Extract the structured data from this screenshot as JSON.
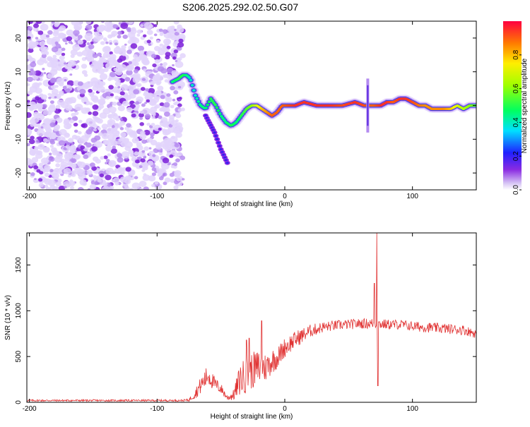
{
  "title": "S206.2025.292.02.50.G07",
  "chart_data": [
    {
      "type": "heatmap",
      "xlabel": "Height of straight line (km)",
      "ylabel": "Frequency (Hz)",
      "xlim": [
        -202,
        150
      ],
      "ylim": [
        -25,
        25
      ],
      "xticks": [
        -200,
        -100,
        0,
        100
      ],
      "yticks": [
        -20,
        -10,
        0,
        10,
        20
      ],
      "noise_region_x": [
        -202,
        -85
      ],
      "ridge": {
        "x": [
          -88,
          -83,
          -80,
          -77,
          -74,
          -70,
          -66,
          -62,
          -58,
          -54,
          -50,
          -46,
          -42,
          -38,
          -34,
          -30,
          -26,
          -22,
          -18,
          -14,
          -10,
          -6,
          -2,
          2,
          8,
          15,
          25,
          35,
          45,
          55,
          62,
          66,
          70,
          75,
          80,
          85,
          90,
          95,
          100,
          105,
          110,
          115,
          120,
          125,
          130,
          135,
          140,
          145,
          150
        ],
        "y": [
          7,
          8,
          9,
          9,
          8,
          3,
          0,
          -1,
          2,
          0,
          -3,
          -5,
          -6,
          -5,
          -3,
          -1,
          0,
          0,
          -1,
          -2,
          -3,
          -2,
          0,
          0,
          0,
          1,
          0,
          0,
          0,
          1,
          0,
          0,
          0,
          0,
          1,
          1,
          2,
          2,
          1,
          0,
          0,
          -1,
          -1,
          -1,
          -1,
          0,
          -1,
          0,
          0
        ],
        "amplitude": [
          0.45,
          0.5,
          0.5,
          0.45,
          0.4,
          0.4,
          0.45,
          0.45,
          0.5,
          0.5,
          0.45,
          0.45,
          0.5,
          0.45,
          0.5,
          0.55,
          0.6,
          0.7,
          0.8,
          0.85,
          0.9,
          0.9,
          0.9,
          0.92,
          0.95,
          0.95,
          0.95,
          0.95,
          0.92,
          0.95,
          0.92,
          0.9,
          0.9,
          0.95,
          0.95,
          0.9,
          0.95,
          0.95,
          0.92,
          0.88,
          0.85,
          0.85,
          0.85,
          0.85,
          0.8,
          0.7,
          0.65,
          0.6,
          0.55
        ]
      },
      "branch": {
        "x": [
          -62,
          -55,
          -50,
          -45
        ],
        "y": [
          -3,
          -8,
          -13,
          -17
        ]
      },
      "spike": {
        "x": 65,
        "y_range": [
          -8,
          8
        ]
      },
      "colorbar": {
        "label": "Normalized spectral amplitude",
        "ticks": [
          "0.0",
          "0.2",
          "0.4",
          "0.6",
          "0.8"
        ],
        "tick_values": [
          0,
          0.2,
          0.4,
          0.6,
          0.8
        ],
        "range": [
          0,
          1
        ]
      }
    },
    {
      "type": "line",
      "xlabel": "Height of straight line (km)",
      "ylabel": "SNR (10 * v/v)",
      "xlim": [
        -202,
        150
      ],
      "ylim": [
        0,
        1850
      ],
      "xticks": [
        -200,
        -100,
        0,
        100
      ],
      "yticks": [
        0,
        500,
        1000,
        1500
      ],
      "color": "#e03030",
      "envelope": {
        "x": [
          -202,
          -150,
          -100,
          -80,
          -75,
          -70,
          -65,
          -60,
          -55,
          -50,
          -45,
          -40,
          -35,
          -30,
          -25,
          -20,
          -15,
          -10,
          -5,
          0,
          10,
          20,
          30,
          40,
          50,
          60,
          70,
          80,
          90,
          100,
          110,
          120,
          130,
          140,
          150
        ],
        "y": [
          20,
          20,
          20,
          20,
          25,
          100,
          200,
          300,
          200,
          150,
          50,
          80,
          250,
          300,
          350,
          380,
          380,
          450,
          500,
          600,
          700,
          780,
          820,
          840,
          850,
          860,
          860,
          850,
          850,
          830,
          820,
          810,
          800,
          790,
          750
        ],
        "noise": [
          10,
          10,
          10,
          10,
          15,
          60,
          100,
          120,
          80,
          60,
          30,
          60,
          180,
          200,
          200,
          200,
          160,
          140,
          120,
          110,
          90,
          70,
          60,
          55,
          55,
          55,
          60,
          55,
          55,
          55,
          55,
          55,
          55,
          55,
          50
        ]
      },
      "spikes": [
        {
          "x": 72,
          "y": 1850
        },
        {
          "x": 70,
          "y": 1300
        },
        {
          "x": 73,
          "y": 180
        },
        {
          "x": -18,
          "y": 890
        },
        {
          "x": -28,
          "y": 700
        },
        {
          "x": -30,
          "y": 680
        }
      ]
    }
  ]
}
